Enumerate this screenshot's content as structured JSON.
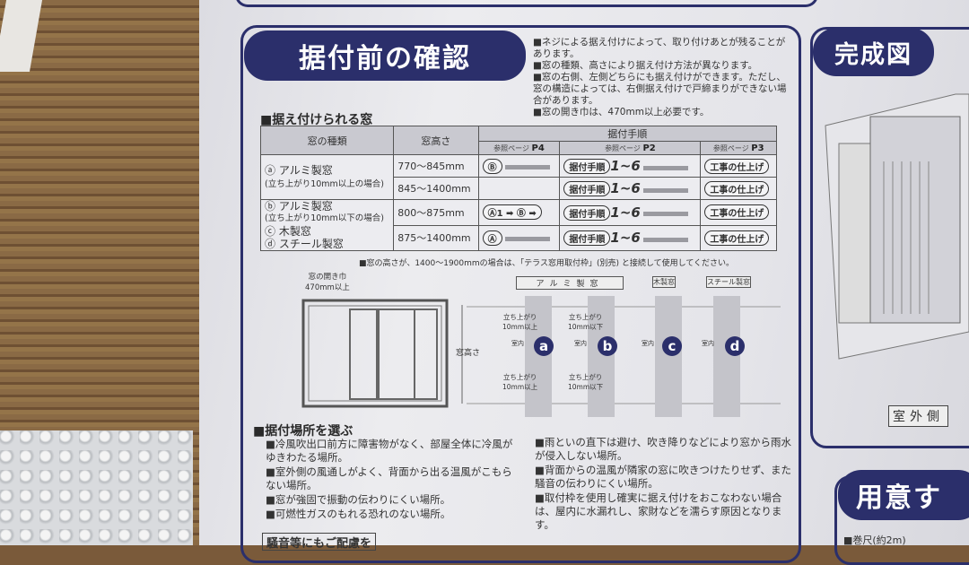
{
  "confirm": {
    "title": "据付前の確認",
    "notes": [
      "■ネジによる据え付けによって、取り付けあとが残ることがあります。",
      "■窓の種類、高さにより据え付け方法が異なります。",
      "■窓の右側、左側どちらにも据え付けができます。ただし、窓の構造によっては、右側据え付けで戸締まりができない場合があります。",
      "■窓の開き巾は、470mm以上必要です。"
    ],
    "section": "■据え付けられる窓",
    "table": {
      "headers": {
        "type": "窓の種類",
        "height": "窓高さ",
        "procedure": "据付手順",
        "ref_label": "参照ページ",
        "p4": "P4",
        "p2": "P2",
        "p3": "P3"
      },
      "rows": [
        {
          "type": "ⓐ アルミ製窓",
          "sub": "(立ち上がり10mm以上の場合)",
          "height": "770～845mm",
          "p4": "Ⓑ",
          "p2": "据付手順",
          "steps": "1~6",
          "p3": "工事の仕上げ"
        },
        {
          "height": "845～1400mm",
          "p4": "",
          "p2": "据付手順",
          "steps": "1~6",
          "p3": "工事の仕上げ"
        },
        {
          "type": "ⓑ アルミ製窓",
          "sub": "(立ち上がり10mm以下の場合)",
          "height": "800～875mm",
          "p4": "Ⓐ1 ➡ Ⓑ ➡",
          "p2": "据付手順",
          "steps": "1~6",
          "p3": "工事の仕上げ"
        },
        {
          "type": "ⓒ 木製窓",
          "sub": "ⓓ スチール製窓",
          "height": "875～1400mm",
          "p4": "Ⓐ",
          "p2": "据付手順",
          "steps": "1~6",
          "p3": "工事の仕上げ"
        }
      ],
      "footnote": "■窓の高さが、1400～1900mmの場合は、「テラス窓用取付枠」(別売) と接続して使用してください。"
    },
    "diagram": {
      "opening": "窓の開き巾",
      "opening_min": "470mm以上",
      "window_height": "窓高さ",
      "alum": "アルミ製窓",
      "wood": "木製窓",
      "steel": "スチール製窓",
      "rise_over": "立ち上がり",
      "over": "10mm以上",
      "under": "10mm以下",
      "indoor": "室内",
      "labels": [
        "a",
        "b",
        "c",
        "d"
      ]
    }
  },
  "location": {
    "section": "■据付場所を選ぶ",
    "left": [
      "■冷風吹出口前方に障害物がなく、部屋全体に冷風がゆきわたる場所。",
      "■室外側の風通しがよく、背面から出る温風がこもらない場所。",
      "■窓が強固で振動の伝わりにくい場所。",
      "■可燃性ガスのもれる恐れのない場所。"
    ],
    "right": [
      "■雨といの直下は避け、吹き降りなどにより窓から雨水が侵入しない場所。",
      "■背面からの温風が隣家の窓に吹きつけたりせず、また騒音の伝わりにくい場所。",
      "■取付枠を使用し確実に据え付けをおこなわない場合は、屋内に水漏れし、家財などを濡らす原因となります。"
    ],
    "cut_box": "騒音等にもご配慮を"
  },
  "complete": {
    "title": "完成図",
    "outdoor": "室外側"
  },
  "prepare": {
    "title": "用意す",
    "item": "■巻尺(約2m)"
  },
  "colors": {
    "navy": "#2b2f6b"
  }
}
